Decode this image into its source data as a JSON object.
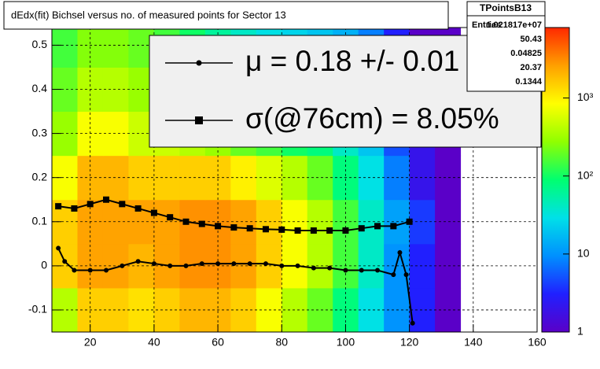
{
  "chart_data": {
    "type": "heatmap",
    "title": "dEdx(fit) Bichsel versus no. of measured points for Sector 13",
    "xlim": [
      8,
      160
    ],
    "ylim": [
      -0.15,
      0.54
    ],
    "xticks": [
      20,
      40,
      60,
      80,
      100,
      120,
      140,
      160
    ],
    "yticks": [
      -0.1,
      0,
      0.1,
      0.2,
      0.3,
      0.4,
      0.5
    ],
    "grid": true,
    "zlim": [
      1,
      8000
    ],
    "zlog": true,
    "zticks": [
      1,
      10,
      {
        "value": 100,
        "label": "10²"
      },
      {
        "value": 1000,
        "label": "10³"
      }
    ],
    "palette": [
      "#5a00c8",
      "#2020ff",
      "#0090ff",
      "#00e0e8",
      "#00ff70",
      "#90ff00",
      "#ffff00",
      "#ffa000",
      "#ff2800"
    ],
    "xbins": [
      8,
      16,
      24,
      32,
      40,
      48,
      56,
      64,
      72,
      80,
      88,
      96,
      104,
      112,
      120,
      128,
      136
    ],
    "ybins": [
      -0.15,
      -0.05,
      0.05,
      0.15,
      0.25,
      0.35,
      0.45,
      0.54
    ],
    "z": [
      [
        400,
        1500,
        1500,
        1200,
        1500,
        2000,
        2000,
        1500,
        800,
        400,
        200,
        80,
        30,
        10,
        3,
        1
      ],
      [
        1500,
        2500,
        2500,
        2000,
        2500,
        3000,
        3000,
        2500,
        1500,
        800,
        400,
        150,
        40,
        10,
        3,
        1
      ],
      [
        1500,
        2500,
        2500,
        2500,
        2500,
        3000,
        3000,
        2500,
        1500,
        800,
        400,
        150,
        40,
        12,
        4,
        1
      ],
      [
        800,
        2000,
        2000,
        1500,
        1500,
        1500,
        1500,
        1000,
        600,
        400,
        200,
        80,
        30,
        8,
        2,
        1
      ],
      [
        300,
        800,
        800,
        500,
        500,
        400,
        300,
        200,
        150,
        100,
        80,
        40,
        20,
        5,
        2,
        1
      ],
      [
        200,
        400,
        400,
        300,
        200,
        150,
        100,
        80,
        60,
        40,
        30,
        20,
        10,
        4,
        1,
        1
      ],
      [
        150,
        250,
        250,
        200,
        150,
        100,
        60,
        40,
        30,
        25,
        20,
        15,
        8,
        3,
        1,
        1
      ]
    ],
    "series": [
      {
        "name": "μ  =  0.18 +/-  0.01 %",
        "color": "#000000",
        "marker": "circle",
        "x": [
          10,
          12,
          15,
          20,
          25,
          30,
          35,
          40,
          45,
          50,
          55,
          60,
          65,
          70,
          75,
          80,
          85,
          90,
          95,
          100,
          105,
          110,
          115,
          117,
          119,
          121
        ],
        "values": [
          0.04,
          0.01,
          -0.01,
          -0.01,
          -0.01,
          0,
          0.01,
          0.005,
          0,
          0,
          0.005,
          0.005,
          0.005,
          0.005,
          0.005,
          0,
          0,
          -0.005,
          -0.005,
          -0.01,
          -0.01,
          -0.01,
          -0.02,
          0.03,
          -0.02,
          -0.13
        ]
      },
      {
        "name": "σ(@76cm) =  8.05%",
        "color": "#000000",
        "marker": "square",
        "x": [
          10,
          15,
          20,
          25,
          30,
          35,
          40,
          45,
          50,
          55,
          60,
          65,
          70,
          75,
          80,
          85,
          90,
          95,
          100,
          105,
          110,
          115,
          120
        ],
        "values": [
          0.135,
          0.13,
          0.14,
          0.15,
          0.14,
          0.13,
          0.12,
          0.11,
          0.1,
          0.095,
          0.09,
          0.087,
          0.085,
          0.083,
          0.082,
          0.08,
          0.08,
          0.08,
          0.08,
          0.085,
          0.09,
          0.09,
          0.1
        ]
      }
    ],
    "stats": {
      "title": "TPointsB13",
      "entries_label": "Entries",
      "entries": "1.021817e+07",
      "values": [
        "50.43",
        "0.04825",
        "20.37",
        "0.1344"
      ]
    }
  }
}
